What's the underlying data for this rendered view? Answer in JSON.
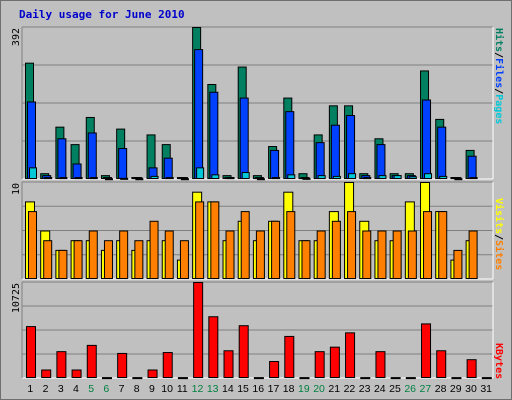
{
  "title": "Daily usage for June 2010",
  "colors": {
    "pages": "#00c8d8",
    "files": "#0040ff",
    "hits": "#008060",
    "sites": "#ff8000",
    "visits": "#ffff00",
    "kbytes": "#ff0000",
    "axis_label": "#000000",
    "weekend_label": "#008040"
  },
  "legend": {
    "top": {
      "pages": "Pages",
      "files": "Files",
      "hits": "Hits",
      "sep1": "/",
      "sep2": "/"
    },
    "middle": {
      "sites": "Sites",
      "visits": "Visits",
      "sep": "/"
    },
    "bottom": {
      "kbytes": "KBytes"
    }
  },
  "chart_data": [
    {
      "type": "bar",
      "panel": "hits-files-pages",
      "y_max_label": "392",
      "ylim": [
        0,
        392
      ],
      "grid": true,
      "categories": [
        "1",
        "2",
        "3",
        "4",
        "5",
        "6",
        "7",
        "8",
        "9",
        "10",
        "11",
        "12",
        "13",
        "14",
        "15",
        "16",
        "17",
        "18",
        "19",
        "20",
        "21",
        "22",
        "23",
        "24",
        "25",
        "26",
        "27",
        "28",
        "29",
        "30",
        "31"
      ],
      "weekend_days": [
        "5",
        "6",
        "12",
        "13",
        "19",
        "20",
        "26",
        "27"
      ],
      "series": [
        {
          "name": "Hits",
          "values": [
            300,
            15,
            135,
            90,
            160,
            10,
            130,
            5,
            115,
            90,
            5,
            392,
            245,
            10,
            290,
            10,
            85,
            210,
            15,
            115,
            190,
            190,
            15,
            105,
            15,
            15,
            280,
            155,
            5,
            75,
            0
          ]
        },
        {
          "name": "Files",
          "values": [
            200,
            10,
            105,
            40,
            120,
            5,
            80,
            5,
            30,
            55,
            5,
            335,
            225,
            5,
            210,
            5,
            75,
            175,
            5,
            95,
            140,
            165,
            10,
            90,
            10,
            10,
            205,
            135,
            5,
            60,
            0
          ]
        },
        {
          "name": "Pages",
          "values": [
            30,
            5,
            5,
            5,
            5,
            2,
            3,
            2,
            8,
            5,
            2,
            30,
            12,
            5,
            18,
            2,
            5,
            12,
            3,
            10,
            8,
            15,
            5,
            10,
            10,
            7,
            15,
            8,
            2,
            5,
            0
          ]
        }
      ]
    },
    {
      "type": "bar",
      "panel": "visits-sites",
      "y_max_label": "10",
      "ylim": [
        0,
        10
      ],
      "grid": true,
      "categories": [
        "1",
        "2",
        "3",
        "4",
        "5",
        "6",
        "7",
        "8",
        "9",
        "10",
        "11",
        "12",
        "13",
        "14",
        "15",
        "16",
        "17",
        "18",
        "19",
        "20",
        "21",
        "22",
        "23",
        "24",
        "25",
        "26",
        "27",
        "28",
        "29",
        "30",
        "31"
      ],
      "series": [
        {
          "name": "Visits",
          "values": [
            8,
            5,
            3,
            4,
            4,
            3,
            4,
            3,
            4,
            4,
            2,
            9,
            8,
            4,
            6,
            4,
            6,
            9,
            4,
            4,
            7,
            10,
            6,
            4,
            4,
            8,
            10,
            7,
            2,
            4,
            0
          ]
        },
        {
          "name": "Sites",
          "values": [
            7,
            4,
            3,
            4,
            5,
            4,
            5,
            4,
            6,
            5,
            4,
            8,
            8,
            5,
            7,
            5,
            6,
            7,
            4,
            5,
            6,
            7,
            5,
            5,
            5,
            5,
            7,
            7,
            3,
            5,
            0
          ]
        }
      ]
    },
    {
      "type": "bar",
      "panel": "kbytes",
      "y_max_label": "10725",
      "ylim": [
        0,
        10725
      ],
      "grid": true,
      "categories": [
        "1",
        "2",
        "3",
        "4",
        "5",
        "6",
        "7",
        "8",
        "9",
        "10",
        "11",
        "12",
        "13",
        "14",
        "15",
        "16",
        "17",
        "18",
        "19",
        "20",
        "21",
        "22",
        "23",
        "24",
        "25",
        "26",
        "27",
        "28",
        "29",
        "30",
        "31"
      ],
      "series": [
        {
          "name": "KBytes",
          "values": [
            5800,
            950,
            3000,
            950,
            3700,
            100,
            2800,
            100,
            950,
            2900,
            100,
            10725,
            6900,
            3100,
            5900,
            100,
            1900,
            4700,
            100,
            3000,
            3500,
            5100,
            100,
            3000,
            100,
            100,
            6100,
            3100,
            100,
            2100,
            100
          ]
        }
      ]
    }
  ]
}
